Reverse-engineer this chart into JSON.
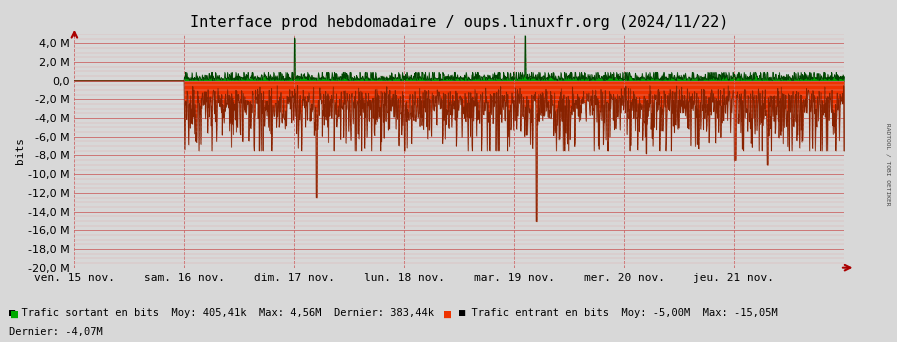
{
  "title": "Interface prod hebdomadaire / oups.linuxfr.org (2024/11/22)",
  "ylabel": "bits",
  "bg_color": "#d8d8d8",
  "plot_bg_color": "#d8d8d8",
  "outgoing_color": "#00aa00",
  "incoming_color": "#ee3300",
  "outgoing_edge_color": "#004400",
  "incoming_edge_color": "#882200",
  "grid_color": "#cc6666",
  "grid_color_minor": "#ddaaaa",
  "ylim": [
    -20000000,
    5000000
  ],
  "yticks": [
    4000000,
    2000000,
    0,
    -2000000,
    -4000000,
    -6000000,
    -8000000,
    -10000000,
    -12000000,
    -14000000,
    -16000000,
    -18000000,
    -20000000
  ],
  "xtick_labels": [
    "ven. 15 nov.",
    "sam. 16 nov.",
    "dim. 17 nov.",
    "lun. 18 nov.",
    "mar. 19 nov.",
    "mer. 20 nov.",
    "jeu. 21 nov."
  ],
  "legend_out_label": "Trafic sortant en bits",
  "legend_in_label": "Trafic entrant en bits",
  "legend_out_stats": "Moy: 405,41k  Max: 4,56M  Dernier: 383,44k",
  "legend_in_stats": "Moy: -5,00M  Max: -15,05M",
  "legend_in_dernier": "Dernier: -4,07M",
  "right_label": "RADTOOL / TOBI OETIKER",
  "font_family": "monospace",
  "title_fontsize": 11,
  "axis_fontsize": 8,
  "legend_fontsize": 7.5
}
